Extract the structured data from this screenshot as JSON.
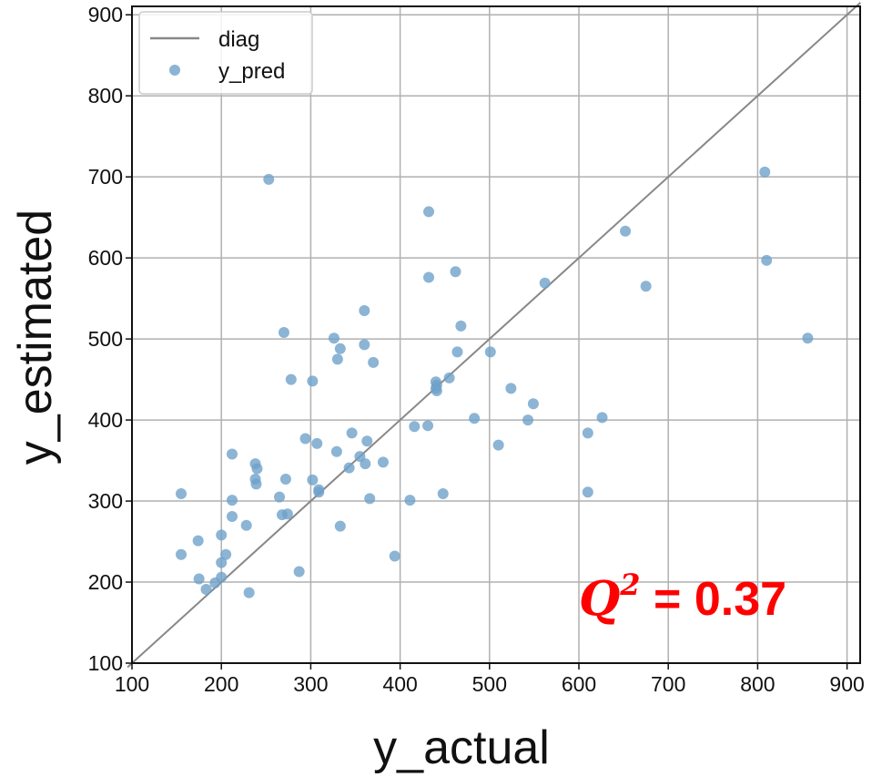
{
  "chart_data": {
    "type": "scatter",
    "title": "",
    "xlabel": "y_actual",
    "ylabel": "y_estimated",
    "xlim": [
      95,
      915
    ],
    "ylim": [
      100,
      915
    ],
    "xticks": [
      100,
      200,
      300,
      400,
      500,
      600,
      700,
      800,
      900
    ],
    "yticks": [
      100,
      200,
      300,
      400,
      500,
      600,
      700,
      800,
      900
    ],
    "grid": true,
    "legend_position": "top-left",
    "annotation": {
      "symbol": "Q",
      "exponent": "2",
      "text": " = 0.37",
      "color": "#ff0000"
    },
    "series": [
      {
        "name": "diag",
        "kind": "line",
        "color": "#888888",
        "x": [
          95,
          915
        ],
        "y": [
          95,
          915
        ]
      },
      {
        "name": "y_pred",
        "kind": "scatter",
        "color": "#6fa1c9",
        "points": [
          [
            253,
            697
          ],
          [
            432,
            657
          ],
          [
            808,
            706
          ],
          [
            652,
            633
          ],
          [
            432,
            576
          ],
          [
            462,
            583
          ],
          [
            562,
            569
          ],
          [
            675,
            565
          ],
          [
            810,
            597
          ],
          [
            360,
            535
          ],
          [
            270,
            508
          ],
          [
            326,
            501
          ],
          [
            468,
            516
          ],
          [
            360,
            493
          ],
          [
            333,
            488
          ],
          [
            856,
            501
          ],
          [
            330,
            475
          ],
          [
            370,
            471
          ],
          [
            464,
            484
          ],
          [
            501,
            484
          ],
          [
            278,
            450
          ],
          [
            302,
            448
          ],
          [
            455,
            452
          ],
          [
            440,
            447
          ],
          [
            441,
            443
          ],
          [
            440,
            439
          ],
          [
            441,
            436
          ],
          [
            524,
            439
          ],
          [
            549,
            420
          ],
          [
            416,
            392
          ],
          [
            431,
            393
          ],
          [
            483,
            402
          ],
          [
            543,
            400
          ],
          [
            626,
            403
          ],
          [
            346,
            384
          ],
          [
            363,
            374
          ],
          [
            294,
            377
          ],
          [
            307,
            371
          ],
          [
            510,
            369
          ],
          [
            610,
            384
          ],
          [
            212,
            358
          ],
          [
            238,
            346
          ],
          [
            240,
            340
          ],
          [
            329,
            361
          ],
          [
            355,
            355
          ],
          [
            361,
            346
          ],
          [
            381,
            348
          ],
          [
            343,
            341
          ],
          [
            238,
            327
          ],
          [
            272,
            327
          ],
          [
            302,
            326
          ],
          [
            239,
            321
          ],
          [
            309,
            314
          ],
          [
            309,
            311
          ],
          [
            155,
            309
          ],
          [
            212,
            301
          ],
          [
            265,
            305
          ],
          [
            366,
            303
          ],
          [
            411,
            301
          ],
          [
            448,
            309
          ],
          [
            610,
            311
          ],
          [
            268,
            283
          ],
          [
            274,
            284
          ],
          [
            212,
            281
          ],
          [
            228,
            270
          ],
          [
            333,
            269
          ],
          [
            200,
            258
          ],
          [
            174,
            251
          ],
          [
            155,
            234
          ],
          [
            205,
            234
          ],
          [
            200,
            224
          ],
          [
            394,
            232
          ],
          [
            175,
            204
          ],
          [
            200,
            206
          ],
          [
            193,
            199
          ],
          [
            183,
            191
          ],
          [
            231,
            187
          ],
          [
            287,
            213
          ]
        ]
      }
    ]
  }
}
